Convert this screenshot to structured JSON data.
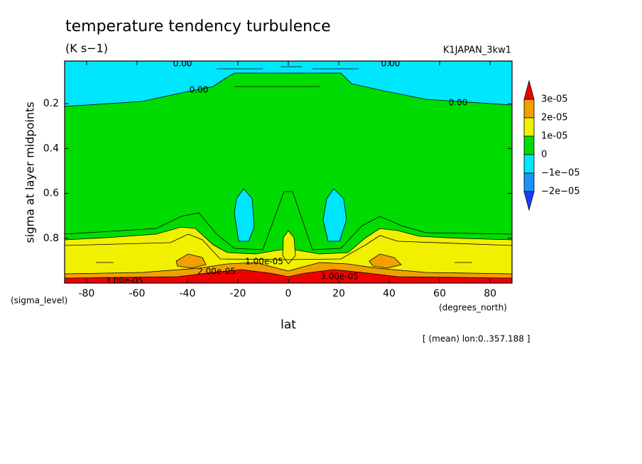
{
  "chart_data": {
    "type": "contour",
    "title": "temperature tendency turbulence",
    "subtitle": "(K s−1)",
    "run_label": "K1JAPAN_3kw1",
    "xlabel": "lat",
    "ylabel": "sigma at layer midpoints",
    "xunit": "(degrees_north)",
    "yunit": "(sigma_level)",
    "note": "[ (mean) lon:0..357.188 ]",
    "xlim": [
      -88.7,
      88.7
    ],
    "ylim": [
      0.01,
      1.0
    ],
    "y_reversed": true,
    "xticks": [
      -80,
      -60,
      -40,
      -20,
      0,
      20,
      40,
      60,
      80
    ],
    "yticks": [
      0.2,
      0.4,
      0.6,
      0.8
    ],
    "colorbar": {
      "levels": [
        {
          "value": 3e-05,
          "label": "3e-05"
        },
        {
          "value": 2e-05,
          "label": "2e-05"
        },
        {
          "value": 1e-05,
          "label": "1e-05"
        },
        0,
        {
          "value": -1e-05,
          "label": "−1e−05"
        },
        {
          "value": -2e-05,
          "label": "−2e−05"
        }
      ],
      "colors": [
        "#f00000",
        "#f0a000",
        "#f0f000",
        "#00dc00",
        "#00e6ff",
        "#1e90ff",
        "#1e3cff"
      ]
    },
    "contour_labels": [
      {
        "value": 0,
        "label": "0.00"
      },
      {
        "value": 0,
        "label": "0.00"
      },
      {
        "value": 0,
        "label": "0.00"
      },
      {
        "value": 0,
        "label": "0.00"
      },
      {
        "value": 2e-05,
        "label": "2.00e-05"
      },
      {
        "value": 1e-05,
        "label": "1.00e-05"
      },
      {
        "value": 3e-05,
        "label": "3.00e-05"
      },
      {
        "value": 3e-05,
        "label": "3.00e-05"
      }
    ]
  }
}
